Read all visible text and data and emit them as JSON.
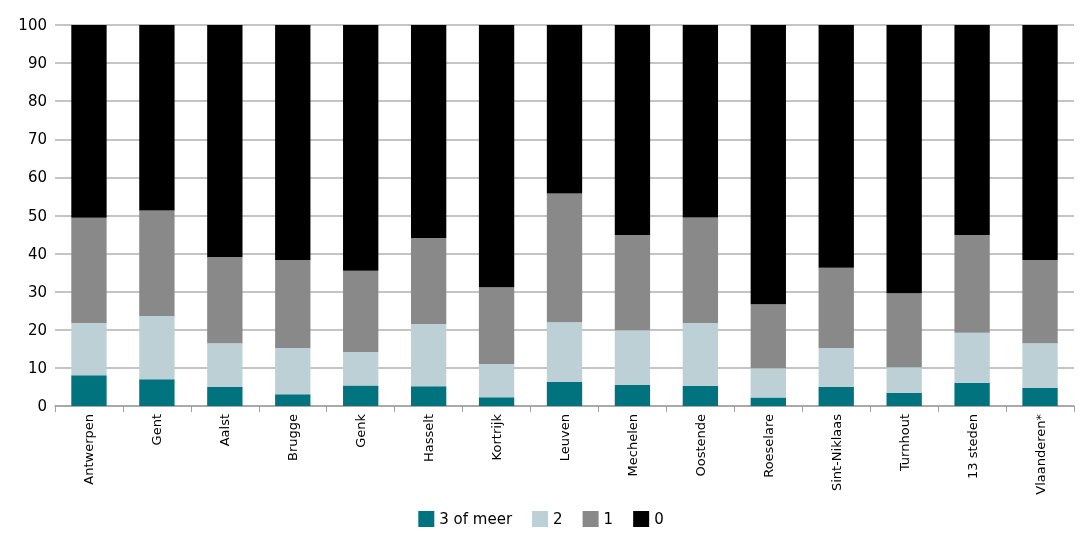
{
  "chart_data": {
    "type": "bar",
    "stacked": true,
    "categories": [
      "Antwerpen",
      "Gent",
      "Aalst",
      "Brugge",
      "Genk",
      "Hasselt",
      "Kortrijk",
      "Leuven",
      "Mechelen",
      "Oostende",
      "Roeselare",
      "Sint-Niklaas",
      "Turnhout",
      "13 steden",
      "Vlaanderen*"
    ],
    "series": [
      {
        "name": "3 of meer",
        "color": "#00737e",
        "values": [
          8.1,
          7.0,
          5.0,
          3.1,
          5.4,
          5.2,
          2.3,
          6.3,
          5.5,
          5.3,
          2.2,
          5.0,
          3.5,
          6.1,
          4.7
        ]
      },
      {
        "name": "2",
        "color": "#bdd0d6",
        "values": [
          13.7,
          16.6,
          11.5,
          12.1,
          8.8,
          16.3,
          8.7,
          15.7,
          14.4,
          16.5,
          7.7,
          10.2,
          6.7,
          13.1,
          11.8
        ]
      },
      {
        "name": "1",
        "color": "#898989",
        "values": [
          27.6,
          27.7,
          22.6,
          23.1,
          21.3,
          22.6,
          20.2,
          33.8,
          25.0,
          27.7,
          16.8,
          21.1,
          19.4,
          25.7,
          21.8
        ]
      },
      {
        "name": "0",
        "color": "#000000",
        "values": [
          50.6,
          48.7,
          60.9,
          61.7,
          64.5,
          55.9,
          68.8,
          44.2,
          55.1,
          50.5,
          73.3,
          63.7,
          70.4,
          55.1,
          61.7
        ]
      }
    ],
    "ylim": [
      0,
      100
    ],
    "yticks": [
      0,
      10,
      20,
      30,
      40,
      50,
      60,
      70,
      80,
      90,
      100
    ],
    "grid": "y",
    "legend": "bottom"
  }
}
